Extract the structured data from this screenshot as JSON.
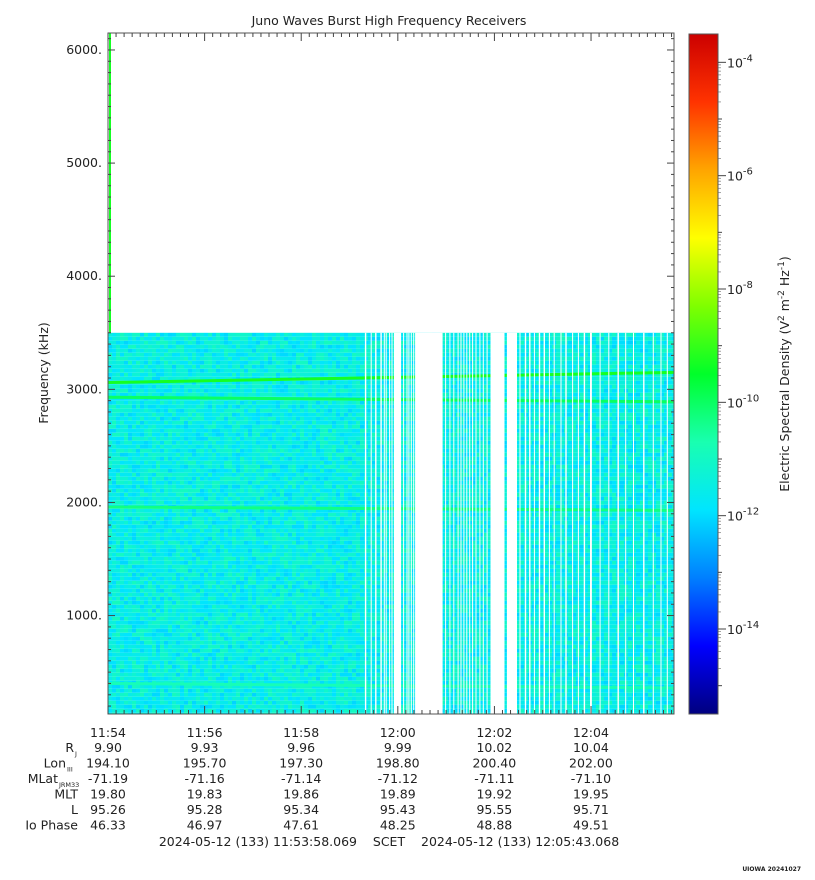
{
  "chart_data": {
    "type": "heatmap",
    "title": "Juno Waves Burst High Frequency Receivers",
    "ylabel": "Frequency (kHz)",
    "ylim": [
      130,
      6150
    ],
    "yticks": [
      {
        "value": 1000,
        "label": "1000."
      },
      {
        "value": 2000,
        "label": "2000."
      },
      {
        "value": 3000,
        "label": "3000."
      },
      {
        "value": 4000,
        "label": "4000."
      },
      {
        "value": 5000,
        "label": "5000."
      },
      {
        "value": 6000,
        "label": "6000."
      }
    ],
    "x_range_min": [
      714.0,
      725.72
    ],
    "xtick_labels": [
      "11:54",
      "11:56",
      "11:58",
      "12:00",
      "12:02",
      "12:04"
    ],
    "xtick_minutes": [
      714,
      716,
      718,
      720,
      722,
      724
    ],
    "data_max_frequency_khz": 3500,
    "background_log_density": -11.5,
    "emission_bands": [
      {
        "start_khz": 3060,
        "end_khz": 3150,
        "log_density": -9.3
      },
      {
        "start_khz": 2930,
        "end_khz": 2890,
        "log_density": -10.0
      },
      {
        "start_khz": 1960,
        "end_khz": 1930,
        "log_density": -10.3
      },
      {
        "start_khz": 400,
        "end_khz": 360,
        "log_density": -10.8
      }
    ],
    "data_gaps_min": [
      [
        719.32,
        719.35
      ],
      [
        719.44,
        719.46
      ],
      [
        719.53,
        719.56
      ],
      [
        719.64,
        719.67
      ],
      [
        719.71,
        719.73
      ],
      [
        719.75,
        719.77
      ],
      [
        719.82,
        719.84
      ],
      [
        719.87,
        719.89
      ],
      [
        719.92,
        720.07
      ],
      [
        720.11,
        720.13
      ],
      [
        720.18,
        720.2
      ],
      [
        720.22,
        720.24
      ],
      [
        720.27,
        720.29
      ],
      [
        720.32,
        720.34
      ],
      [
        720.36,
        720.93
      ],
      [
        720.98,
        721.0
      ],
      [
        721.07,
        721.09
      ],
      [
        721.15,
        721.17
      ],
      [
        721.24,
        721.26
      ],
      [
        721.3,
        721.32
      ],
      [
        721.36,
        721.38
      ],
      [
        721.42,
        721.44
      ],
      [
        721.48,
        721.5
      ],
      [
        721.54,
        721.56
      ],
      [
        721.61,
        721.63
      ],
      [
        721.69,
        721.71
      ],
      [
        721.76,
        721.78
      ],
      [
        721.84,
        721.86
      ],
      [
        721.92,
        722.21
      ],
      [
        722.26,
        722.47
      ],
      [
        722.52,
        722.54
      ],
      [
        722.63,
        722.66
      ],
      [
        722.72,
        722.75
      ],
      [
        722.82,
        722.84
      ],
      [
        722.92,
        722.95
      ],
      [
        723.02,
        723.05
      ],
      [
        723.13,
        723.15
      ],
      [
        723.23,
        723.25
      ],
      [
        723.37,
        723.39
      ],
      [
        723.47,
        723.5
      ],
      [
        723.61,
        723.63
      ],
      [
        723.73,
        723.75
      ],
      [
        723.85,
        723.88
      ],
      [
        723.98,
        724.02
      ],
      [
        724.18,
        724.2
      ],
      [
        724.36,
        724.38
      ],
      [
        724.55,
        724.58
      ],
      [
        724.71,
        724.73
      ],
      [
        724.87,
        724.89
      ],
      [
        725.08,
        725.11
      ],
      [
        725.28,
        725.3
      ],
      [
        725.44,
        725.46
      ],
      [
        725.57,
        725.59
      ]
    ],
    "colorbar": {
      "label": "Electric Spectral Density (V^2 m^-2 Hz^-1)",
      "label_parts": [
        "Electric Spectral Density (V",
        "2",
        " m",
        "-2",
        " Hz",
        "-1",
        ")"
      ],
      "scale": "log",
      "log_min": -15.5,
      "log_max": -3.5,
      "ticks": [
        {
          "exp": -14,
          "base": "10",
          "sup": "-14"
        },
        {
          "exp": -12,
          "base": "10",
          "sup": "-12"
        },
        {
          "exp": -10,
          "base": "10",
          "sup": "-10"
        },
        {
          "exp": -8,
          "base": "10",
          "sup": "-8"
        },
        {
          "exp": -6,
          "base": "10",
          "sup": "-6"
        },
        {
          "exp": -4,
          "base": "10",
          "sup": "-4"
        }
      ],
      "colors": [
        "#00007f",
        "#0000ff",
        "#007fff",
        "#00e5ff",
        "#19ffb0",
        "#00ff2a",
        "#7fff00",
        "#ffff00",
        "#ffa500",
        "#ff3300",
        "#cc0000"
      ]
    },
    "ephemeris_labels": [
      {
        "text": "R",
        "sub": "J"
      },
      {
        "text": "Lon",
        "sub": "III"
      },
      {
        "text": "MLat",
        "sub": "JRM33"
      },
      {
        "text": "MLT",
        "sub": ""
      },
      {
        "text": "L",
        "sub": ""
      },
      {
        "text": "Io Phase",
        "sub": ""
      }
    ],
    "ephemeris_values": [
      [
        "9.90",
        "9.93",
        "9.96",
        "9.99",
        "10.02",
        "10.04"
      ],
      [
        "194.10",
        "195.70",
        "197.30",
        "198.80",
        "200.40",
        "202.00"
      ],
      [
        "-71.19",
        "-71.16",
        "-71.14",
        "-71.12",
        "-71.11",
        "-71.10"
      ],
      [
        "19.80",
        "19.83",
        "19.86",
        "19.89",
        "19.92",
        "19.95"
      ],
      [
        "95.26",
        "95.28",
        "95.34",
        "95.43",
        "95.55",
        "95.71"
      ],
      [
        "46.33",
        "46.97",
        "47.61",
        "48.25",
        "48.88",
        "49.51"
      ]
    ],
    "time_range_label": "2024-05-12 (133) 11:53:58.069    SCET    2024-05-12 (133) 12:05:43.068",
    "footer_tag": "UIOWA 20241027"
  }
}
